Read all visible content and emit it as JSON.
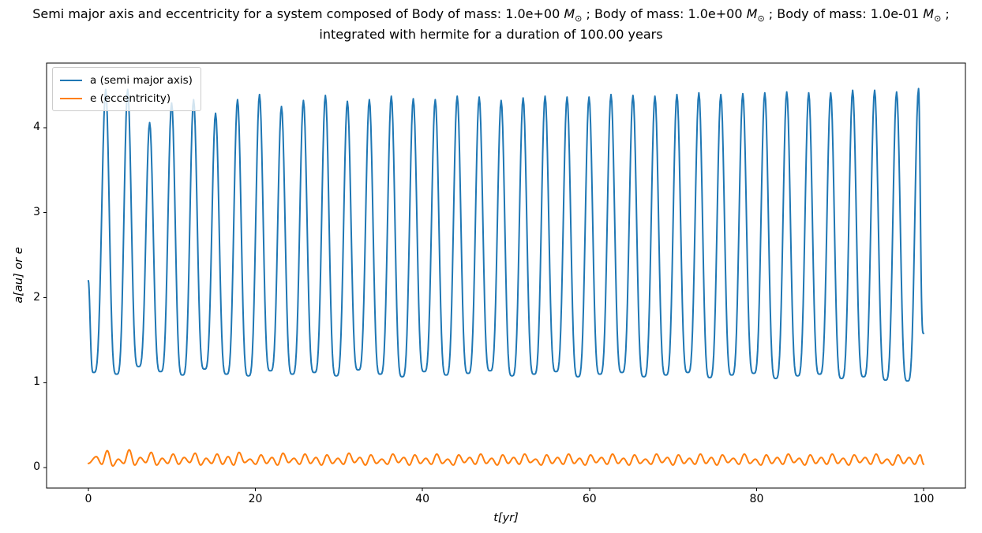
{
  "title": {
    "part1": "Semi major axis and eccentricity for a system composed of Body of mass: 1.0e+00 ",
    "msym": "M",
    "msub": "⊙",
    "part2": " ; Body of mass: 1.0e+00 ",
    "part3": " ; Body of mass: 1.0e-01 ",
    "part4": " ;",
    "line2": "integrated with hermite for a duration of 100.00 years"
  },
  "legend": {
    "items": [
      {
        "label": "a (semi major axis)",
        "color": "#1f77b4"
      },
      {
        "label": "e (eccentricity)",
        "color": "#ff7f0e"
      }
    ]
  },
  "chart_data": {
    "type": "line",
    "title": "Semi major axis and eccentricity for a system composed of Body of mass: 1.0e+00 M⊙ ; Body of mass: 1.0e+00 M⊙ ; Body of mass: 1.0e-01 M⊙ ; integrated with hermite for a duration of 100.00 years",
    "xlabel": "t[yr]",
    "ylabel": "a[au] or e",
    "xlim": [
      -5,
      105
    ],
    "ylim": [
      -0.24,
      4.76
    ],
    "x_ticks": [
      0,
      20,
      40,
      60,
      80,
      100
    ],
    "y_ticks": [
      0,
      1,
      2,
      3,
      4
    ],
    "grid": false,
    "legend_position": "upper left",
    "series": [
      {
        "name": "a (semi major axis)",
        "color": "#1f77b4",
        "shape_sharpness": 2.0,
        "start": {
          "t": 0,
          "y": 2.2
        },
        "pre_min": {
          "t": 0.63,
          "y": 1.12
        },
        "first_peak_t": 2.08,
        "period": 2.63,
        "descent_time": 1.3,
        "peak_heights": [
          4.45,
          4.45,
          4.06,
          4.29,
          4.33,
          4.17,
          4.33,
          4.39,
          4.25,
          4.32,
          4.38,
          4.31,
          4.33,
          4.37,
          4.34,
          4.33,
          4.37,
          4.36,
          4.32,
          4.35,
          4.37,
          4.36,
          4.36,
          4.39,
          4.38,
          4.37,
          4.39,
          4.41,
          4.39,
          4.4,
          4.41,
          4.42,
          4.41,
          4.41,
          4.44,
          4.44,
          4.42,
          4.46
        ],
        "min_depths": [
          1.1,
          1.19,
          1.13,
          1.09,
          1.16,
          1.1,
          1.08,
          1.14,
          1.1,
          1.12,
          1.08,
          1.15,
          1.1,
          1.07,
          1.13,
          1.09,
          1.11,
          1.14,
          1.08,
          1.1,
          1.13,
          1.07,
          1.1,
          1.12,
          1.07,
          1.09,
          1.12,
          1.06,
          1.09,
          1.11,
          1.05,
          1.08,
          1.1,
          1.05,
          1.07,
          1.03,
          1.02,
          1.05
        ],
        "end": {
          "t": 100,
          "y": 1.58
        }
      },
      {
        "name": "e (eccentricity)",
        "color": "#ff7f0e",
        "shape_sharpness": 1.0,
        "start": {
          "t": 0,
          "y": 0.05
        },
        "first_peak_t": 0.95,
        "period": 1.315,
        "descent_time": 0.66,
        "peak_heights": [
          0.13,
          0.2,
          0.1,
          0.21,
          0.12,
          0.18,
          0.11,
          0.16,
          0.12,
          0.17,
          0.11,
          0.16,
          0.13,
          0.18,
          0.1,
          0.15,
          0.12,
          0.17,
          0.11,
          0.16,
          0.12,
          0.15,
          0.11,
          0.17,
          0.12,
          0.15,
          0.1,
          0.16,
          0.12,
          0.15,
          0.11,
          0.16,
          0.1,
          0.15,
          0.12,
          0.16,
          0.11,
          0.15,
          0.12,
          0.16,
          0.1,
          0.15,
          0.12,
          0.16,
          0.11,
          0.15,
          0.12,
          0.16,
          0.11,
          0.15,
          0.1,
          0.16,
          0.12,
          0.15,
          0.11,
          0.16,
          0.12,
          0.15,
          0.11,
          0.16,
          0.1,
          0.15,
          0.12,
          0.16,
          0.11,
          0.15,
          0.12,
          0.16,
          0.11,
          0.15,
          0.12,
          0.16,
          0.1,
          0.15,
          0.12,
          0.15
        ],
        "min_depths": [
          0.04,
          0.02,
          0.05,
          0.03,
          0.06,
          0.03,
          0.05,
          0.04,
          0.06,
          0.03,
          0.05,
          0.04,
          0.03,
          0.06,
          0.04,
          0.05,
          0.03,
          0.06,
          0.04,
          0.05,
          0.03,
          0.05,
          0.04,
          0.06,
          0.03,
          0.05,
          0.04,
          0.06,
          0.03,
          0.05,
          0.04,
          0.05,
          0.03,
          0.06,
          0.04,
          0.05,
          0.03,
          0.05,
          0.04,
          0.06,
          0.03,
          0.05,
          0.04,
          0.05,
          0.03,
          0.06,
          0.04,
          0.05,
          0.03,
          0.05,
          0.04,
          0.06,
          0.03,
          0.05,
          0.04,
          0.05,
          0.03,
          0.06,
          0.04,
          0.05,
          0.03,
          0.05,
          0.04,
          0.06,
          0.03,
          0.05,
          0.04,
          0.05,
          0.03,
          0.06,
          0.04,
          0.05,
          0.03,
          0.05,
          0.04,
          0.04
        ],
        "end": {
          "t": 100,
          "y": 0.04
        }
      }
    ]
  }
}
